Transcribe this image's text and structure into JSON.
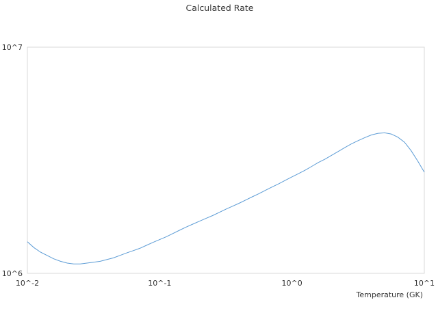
{
  "chart_data": {
    "type": "line",
    "title": "Calculated Rate",
    "xlabel": "Temperature (GK)",
    "ylabel": "",
    "x_scale": "log",
    "y_scale": "log",
    "xlim": [
      0.01,
      10
    ],
    "ylim": [
      1000000,
      10000000
    ],
    "x_ticks": [
      "10^-2",
      "10^-1",
      "10^0",
      "10^1"
    ],
    "y_ticks": [
      "10^6",
      "10^7"
    ],
    "grid": false,
    "legend": "none",
    "line_color": "#5b9bd5",
    "series": [
      {
        "x": [
          0.01,
          0.0112,
          0.0126,
          0.0141,
          0.0158,
          0.0178,
          0.02,
          0.0224,
          0.0251,
          0.0282,
          0.0316,
          0.0355,
          0.0398,
          0.0447,
          0.0501,
          0.0562,
          0.0631,
          0.0708,
          0.0794,
          0.0891,
          0.1,
          0.112,
          0.126,
          0.141,
          0.158,
          0.178,
          0.2,
          0.224,
          0.251,
          0.282,
          0.316,
          0.355,
          0.398,
          0.447,
          0.501,
          0.562,
          0.631,
          0.708,
          0.794,
          0.891,
          1.0,
          1.12,
          1.26,
          1.41,
          1.58,
          1.78,
          2.0,
          2.24,
          2.51,
          2.82,
          3.16,
          3.55,
          3.98,
          4.47,
          5.01,
          5.62,
          6.31,
          7.08,
          7.94,
          8.91,
          10.0
        ],
        "y": [
          1380000,
          1300000,
          1240000,
          1200000,
          1160000,
          1130000,
          1110000,
          1100000,
          1100000,
          1110000,
          1120000,
          1130000,
          1150000,
          1170000,
          1200000,
          1230000,
          1260000,
          1290000,
          1330000,
          1370000,
          1410000,
          1450000,
          1500000,
          1550000,
          1600000,
          1650000,
          1700000,
          1750000,
          1800000,
          1860000,
          1920000,
          1980000,
          2040000,
          2110000,
          2180000,
          2250000,
          2330000,
          2410000,
          2490000,
          2580000,
          2670000,
          2760000,
          2860000,
          2970000,
          3090000,
          3200000,
          3330000,
          3460000,
          3600000,
          3740000,
          3860000,
          3980000,
          4090000,
          4160000,
          4180000,
          4130000,
          4000000,
          3800000,
          3490000,
          3140000,
          2800000
        ]
      }
    ]
  }
}
